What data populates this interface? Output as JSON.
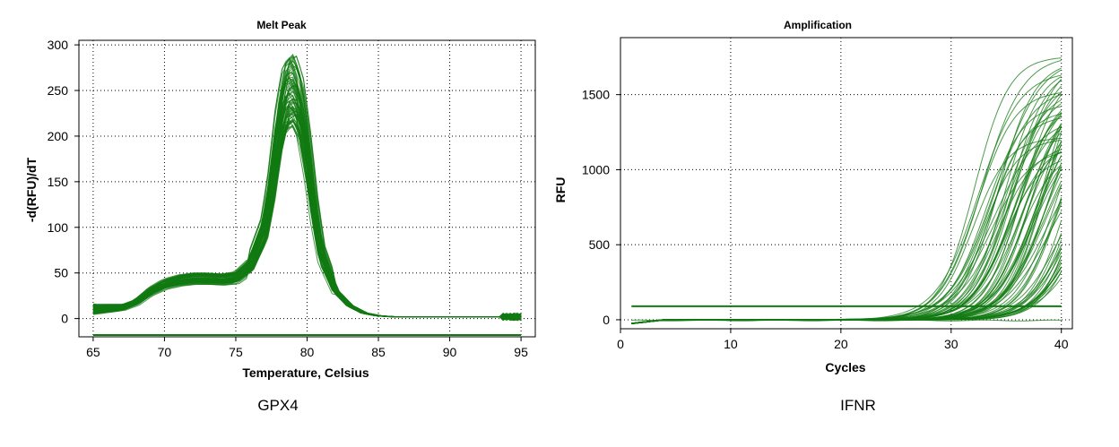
{
  "chart_data": [
    {
      "type": "line",
      "title": "Melt Peak",
      "caption": "GPX4",
      "xlabel": "Temperature, Celsius",
      "ylabel": "-d(RFU)/dT",
      "xlim": [
        64,
        96
      ],
      "ylim": [
        -20,
        305
      ],
      "xticks": [
        65,
        70,
        75,
        80,
        85,
        90,
        95
      ],
      "yticks": [
        0,
        50,
        100,
        150,
        200,
        250,
        300
      ],
      "grid": true,
      "line_color": "#127a12",
      "curve_count": 70,
      "series": [
        {
          "label": "representative melt curve",
          "x": [
            65,
            67,
            68,
            69,
            70,
            71,
            72,
            73,
            74,
            75,
            76,
            77,
            77.5,
            78,
            78.5,
            79,
            79.5,
            80,
            80.5,
            81,
            82,
            83,
            84,
            85,
            86,
            88,
            90,
            92,
            94,
            95
          ],
          "y": [
            10,
            12,
            18,
            30,
            38,
            42,
            44,
            44,
            43,
            45,
            58,
            95,
            140,
            200,
            238,
            245,
            225,
            175,
            115,
            68,
            30,
            14,
            6,
            3,
            2,
            2,
            2,
            2,
            2,
            2
          ]
        },
        {
          "label": "baseline",
          "x": [
            65,
            95
          ],
          "y": [
            -18,
            -18
          ]
        }
      ],
      "peak_range": [
        210,
        290
      ],
      "peak_temperature": 78.8
    },
    {
      "type": "line",
      "title": "Amplification",
      "caption": "IFNR",
      "xlabel": "Cycles",
      "ylabel": "RFU",
      "xlim": [
        0,
        41
      ],
      "ylim": [
        -60,
        1880
      ],
      "xticks": [
        0,
        10,
        20,
        30,
        40
      ],
      "yticks": [
        0,
        500,
        1000,
        1500
      ],
      "grid": true,
      "line_color": "#127a12",
      "curve_count": 75,
      "threshold": 90,
      "series": [
        {
          "label": "representative amplification curve",
          "x": [
            1,
            5,
            10,
            15,
            20,
            25,
            28,
            30,
            31,
            32,
            33,
            34,
            35,
            36,
            37,
            38,
            39,
            40
          ],
          "y": [
            -20,
            0,
            2,
            0,
            -2,
            0,
            10,
            40,
            90,
            180,
            320,
            520,
            760,
            980,
            1170,
            1320,
            1430,
            1500
          ]
        },
        {
          "label": "threshold",
          "x": [
            1,
            40
          ],
          "y": [
            90,
            90
          ]
        }
      ],
      "ct_range": [
        27,
        37.5
      ],
      "plateau_range": [
        1100,
        1800
      ]
    }
  ]
}
